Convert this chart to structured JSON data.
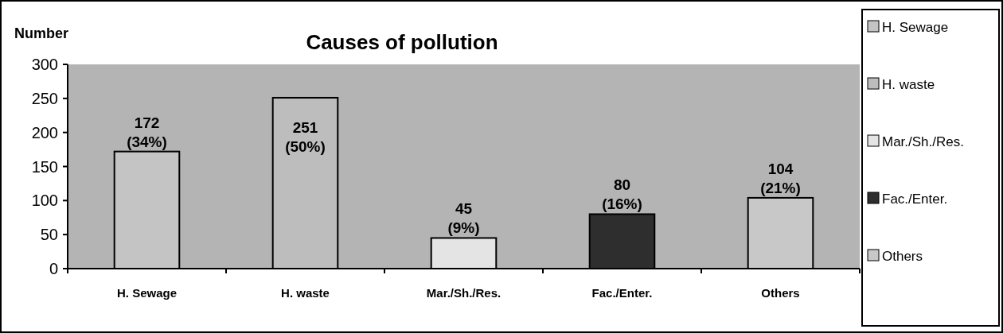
{
  "chart_data": {
    "type": "bar",
    "title": "Causes of pollution",
    "ylabel": "Number",
    "categories": [
      "H. Sewage",
      "H. waste",
      "Mar./Sh./Res.",
      "Fac./Enter.",
      "Others"
    ],
    "series": [
      {
        "name": "H. Sewage",
        "color": "#c4c4c4",
        "values": [
          172,
          null,
          null,
          null,
          null
        ],
        "value_labels": [
          "172 (34%)",
          null,
          null,
          null,
          null
        ]
      },
      {
        "name": "H. waste",
        "color": "#bdbdbd",
        "values": [
          null,
          251,
          null,
          null,
          null
        ],
        "value_labels": [
          null,
          "251 (50%)",
          null,
          null,
          null
        ]
      },
      {
        "name": "Mar./Sh./Res.",
        "color": "#e4e4e4",
        "values": [
          null,
          null,
          45,
          null,
          null
        ],
        "value_labels": [
          null,
          null,
          "45 (9%)",
          null,
          null
        ]
      },
      {
        "name": "Fac./Enter.",
        "color": "#2e2e2e",
        "values": [
          null,
          null,
          null,
          80,
          null
        ],
        "value_labels": [
          null,
          null,
          null,
          "80 (16%)",
          null
        ]
      },
      {
        "name": "Others",
        "color": "#c8c8c8",
        "values": [
          null,
          null,
          null,
          null,
          104
        ],
        "value_labels": [
          null,
          null,
          null,
          null,
          "104 (21%)"
        ]
      }
    ],
    "ylim": [
      0,
      300
    ],
    "yticks": [
      0,
      50,
      100,
      150,
      200,
      250,
      300
    ],
    "legend": "right"
  }
}
